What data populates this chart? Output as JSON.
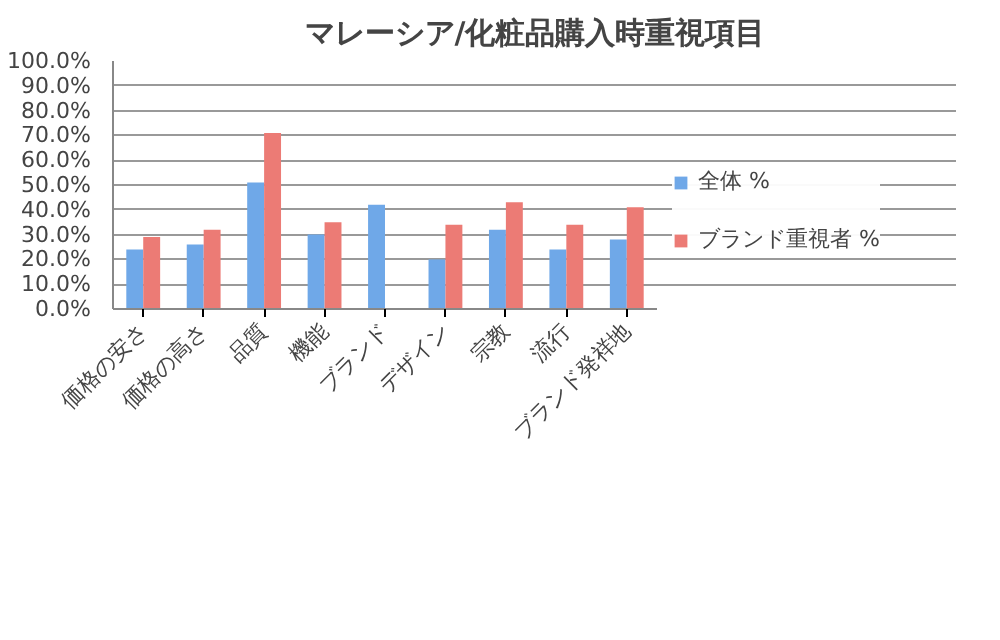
{
  "chart_data": {
    "type": "bar",
    "title": "マレーシア/化粧品購入時重視項目",
    "categories": [
      "価格の安さ",
      "価格の高さ",
      "品質",
      "機能",
      "ブランド",
      "デザイン",
      "宗教",
      "流行",
      "ブランド発祥地"
    ],
    "series": [
      {
        "name": "全体 %",
        "color": "#6fa8e8",
        "values": [
          24,
          26,
          51,
          30,
          42,
          20,
          32,
          24,
          28
        ]
      },
      {
        "name": "ブランド重視者 %",
        "color": "#ec7b75",
        "values": [
          29,
          32,
          71,
          35,
          null,
          34,
          43,
          34,
          41
        ]
      }
    ],
    "ylim": [
      0,
      100
    ],
    "yticks": [
      {
        "value": 0,
        "label": "0.0%"
      },
      {
        "value": 10,
        "label": "10.0%"
      },
      {
        "value": 20,
        "label": "20.0%"
      },
      {
        "value": 30,
        "label": "30.0%"
      },
      {
        "value": 40,
        "label": "40.0%"
      },
      {
        "value": 50,
        "label": "50.0%"
      },
      {
        "value": 60,
        "label": "60.0%"
      },
      {
        "value": 70,
        "label": "70.0%"
      },
      {
        "value": 80,
        "label": "80.0%"
      },
      {
        "value": 90,
        "label": "90.0%"
      },
      {
        "value": 100,
        "label": "100.0%"
      }
    ],
    "grid": "y",
    "legend": "right"
  }
}
